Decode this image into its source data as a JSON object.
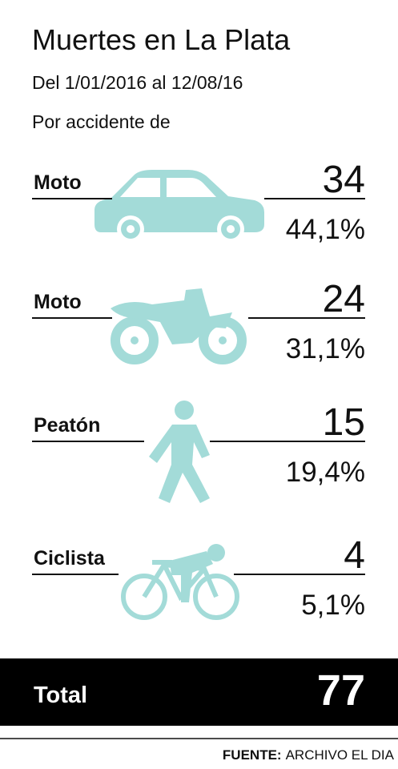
{
  "header": {
    "title": "Muertes en La Plata",
    "subtitle": "Del 1/01/2016 al 12/08/16",
    "caption": "Por accidente de"
  },
  "items": [
    {
      "label": "Moto",
      "count": 34,
      "percent": "44,1%"
    },
    {
      "label": "Moto",
      "count": 24,
      "percent": "31,1%"
    },
    {
      "label": "Peatón",
      "count": 15,
      "percent": "19,4%"
    },
    {
      "label": "Ciclista",
      "count": 4,
      "percent": "5,1%"
    }
  ],
  "total": {
    "label": "Total",
    "value": 77
  },
  "source": {
    "label": "FUENTE:",
    "text": "ARCHIVO EL DIA"
  }
}
